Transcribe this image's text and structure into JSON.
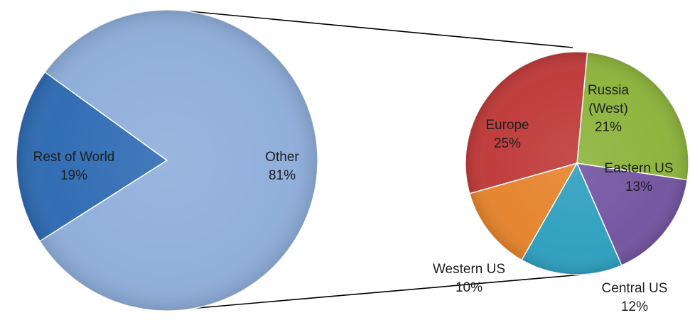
{
  "chart_data": {
    "type": "pie",
    "subtype": "pie-of-pie",
    "main": {
      "slices": [
        {
          "label": "Rest of World",
          "value_text": "19%",
          "value": 19,
          "color": "#2e6bb3"
        },
        {
          "label": "Other",
          "value_text": "81%",
          "value": 81,
          "color": "#8eaedb"
        }
      ]
    },
    "secondary": {
      "slices": [
        {
          "label_lines": [
            "Russia",
            "(West)"
          ],
          "value_text": "21%",
          "value": 21,
          "color": "#8db33b"
        },
        {
          "label_lines": [
            "Eastern US"
          ],
          "value_text": "13%",
          "value": 13,
          "color": "#7254a0"
        },
        {
          "label_lines": [
            "Central US"
          ],
          "value_text": "12%",
          "value": 12,
          "color": "#2e9fbf"
        },
        {
          "label_lines": [
            "Western US"
          ],
          "value_text": "10%",
          "value": 10,
          "color": "#e5832b"
        },
        {
          "label_lines": [
            "Europe"
          ],
          "value_text": "25%",
          "value": 25,
          "color": "#bf3a39"
        }
      ]
    },
    "legend": "none"
  }
}
